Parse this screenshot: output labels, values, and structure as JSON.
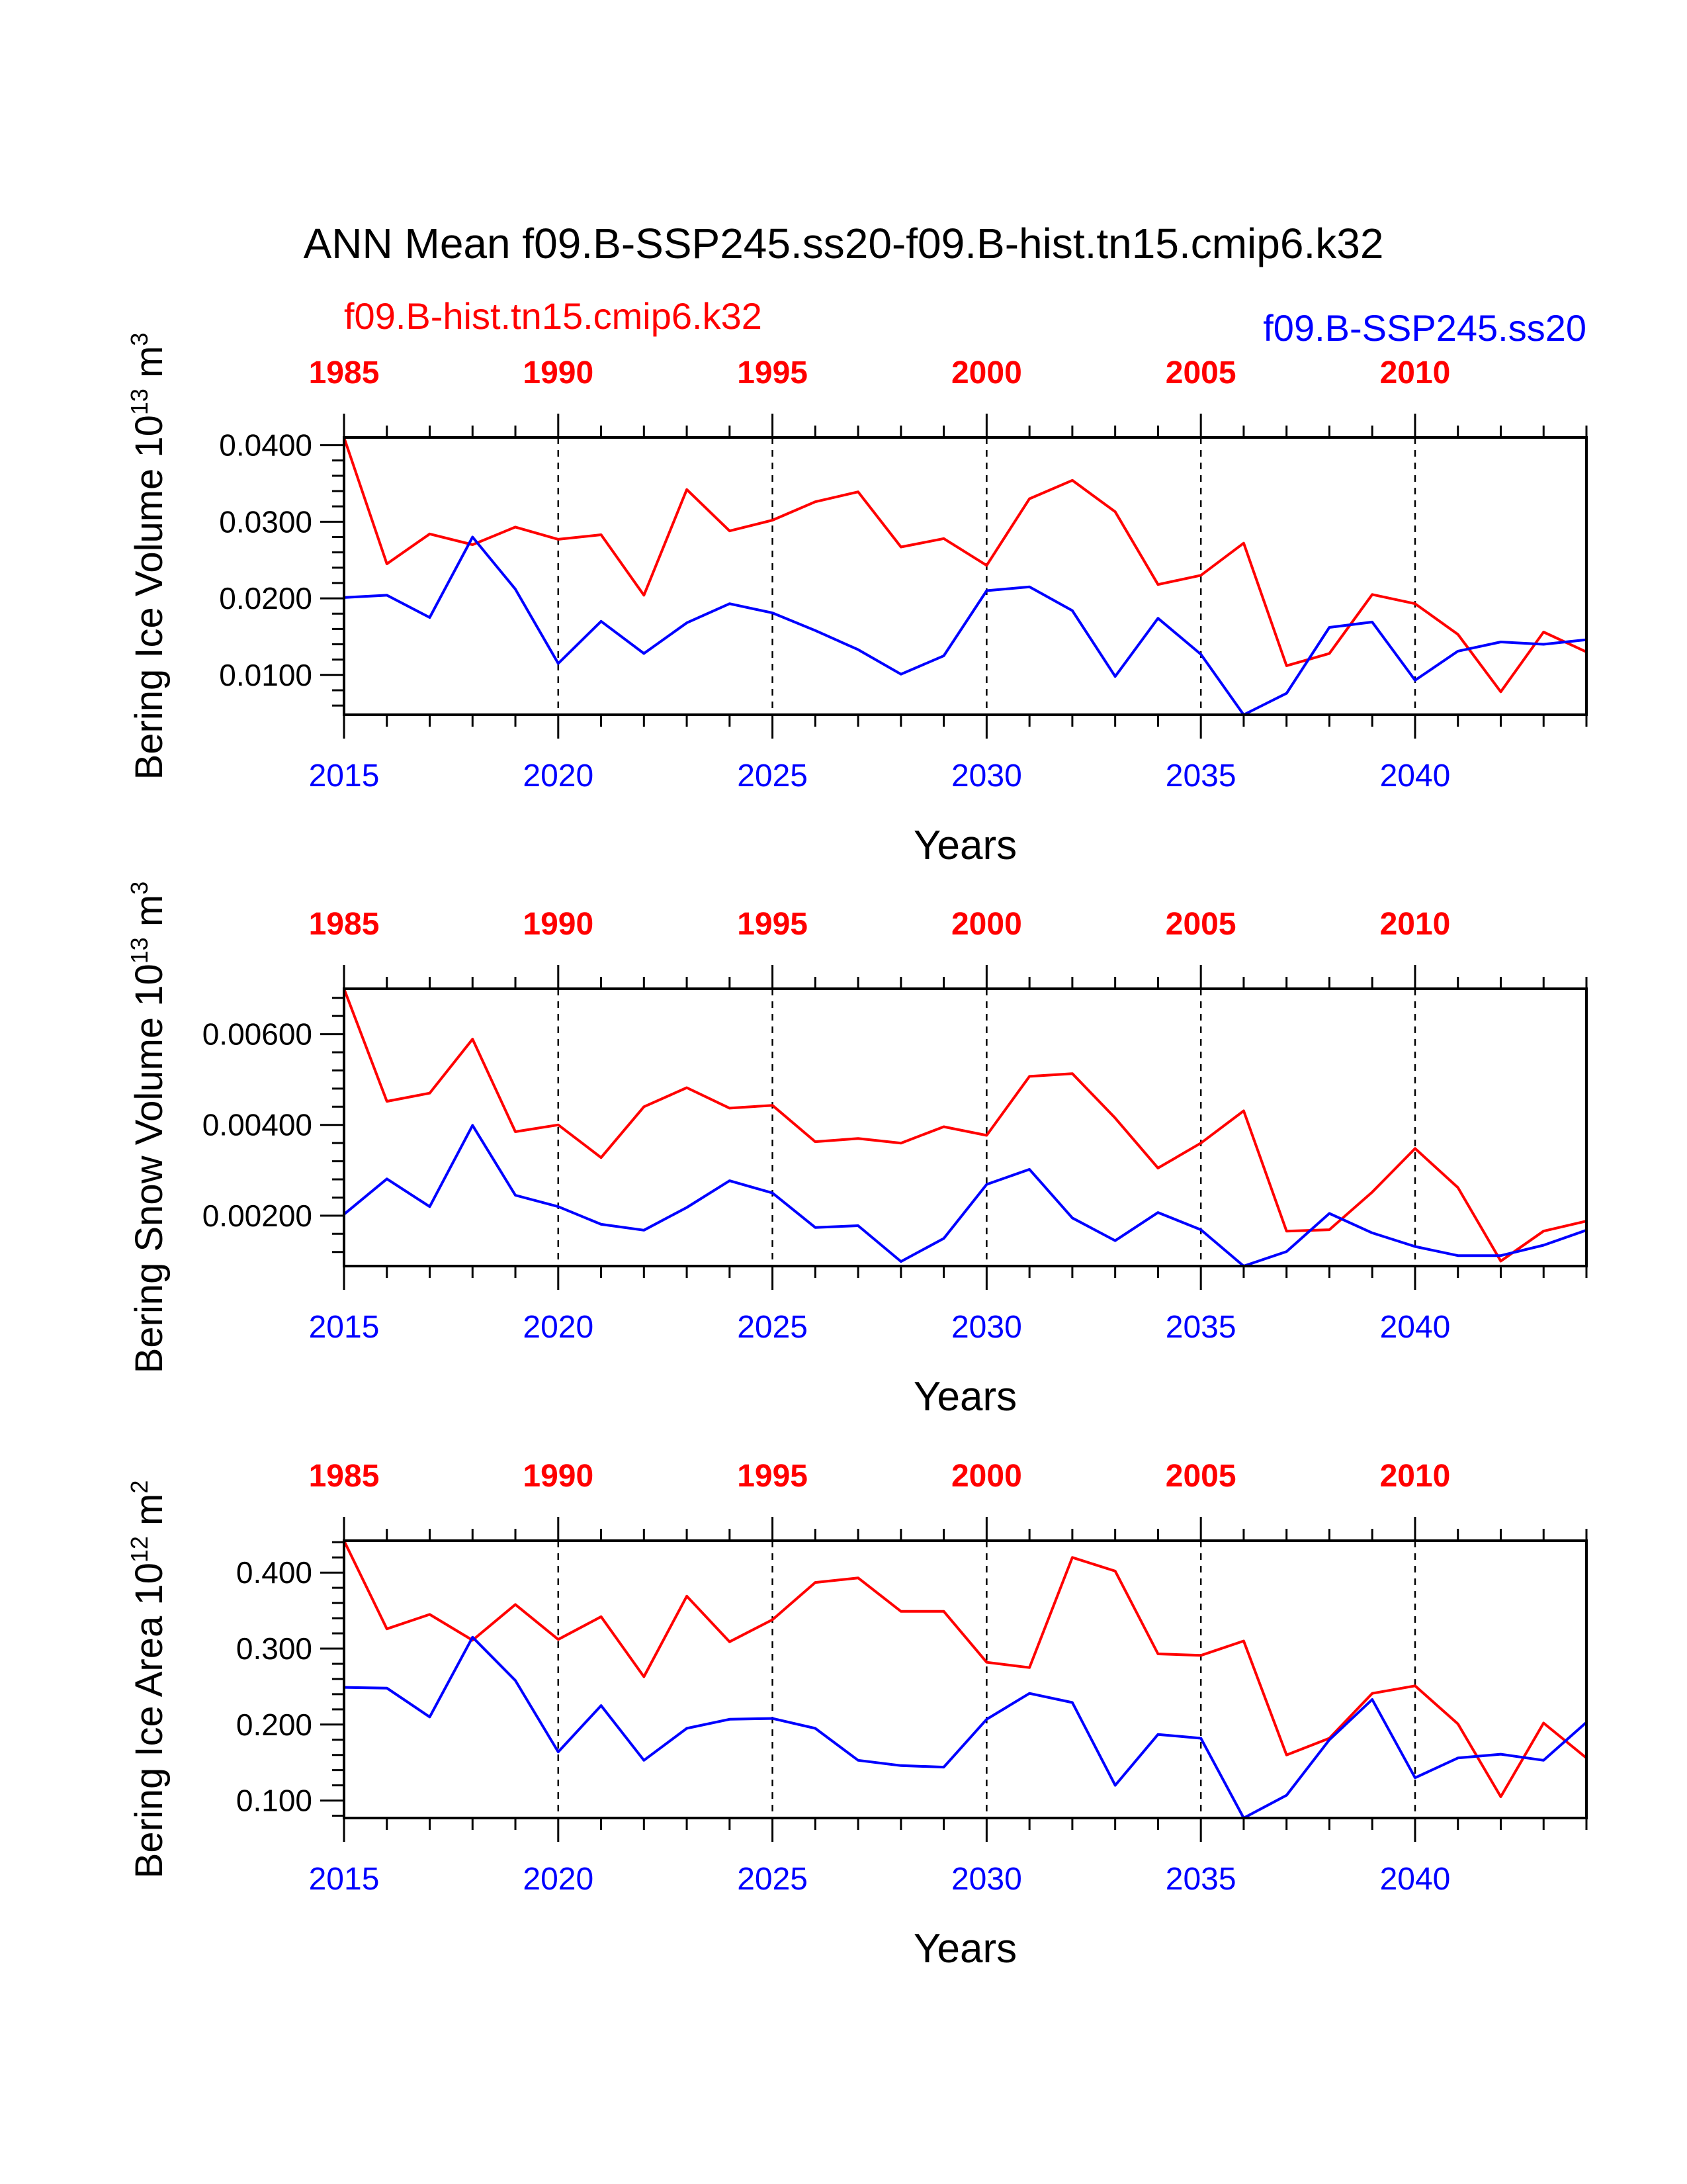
{
  "title": "ANN Mean f09.B-SSP245.ss20-f09.B-hist.tn15.cmip6.k32",
  "legend": {
    "red_label": "f09.B-hist.tn15.cmip6.k32",
    "blue_label": "f09.B-SSP245.ss20"
  },
  "colors": {
    "red": "#ff0000",
    "blue": "#0000ff",
    "axis": "#000000"
  },
  "chart_data": [
    {
      "type": "line",
      "ylabel": "Bering Ice Volume 10",
      "ylabel_exp": "13",
      "ylabel_unit": "m",
      "ylabel_unit_exp": "3",
      "xlabel": "Years",
      "xlim": [
        2015,
        2044
      ],
      "ylim": [
        0.0048,
        0.041
      ],
      "yticks": [
        0.01,
        0.02,
        0.03,
        0.04
      ],
      "yticklabels": [
        "0.0100",
        "0.0200",
        "0.0300",
        "0.0400"
      ],
      "yminor_step": 0.002,
      "grid": "dashed vertical at major x ticks",
      "bottom_axis": {
        "ticks": [
          2015,
          2020,
          2025,
          2030,
          2035,
          2040
        ],
        "labels": [
          "2015",
          "2020",
          "2025",
          "2030",
          "2035",
          "2040"
        ]
      },
      "top_axis": {
        "ticks": [
          1985,
          1990,
          1995,
          2000,
          2005,
          2010
        ],
        "labels": [
          "1985",
          "1990",
          "1995",
          "2000",
          "2005",
          "2010"
        ]
      },
      "x": [
        2015,
        2016,
        2017,
        2018,
        2019,
        2020,
        2021,
        2022,
        2023,
        2024,
        2025,
        2026,
        2027,
        2028,
        2029,
        2030,
        2031,
        2032,
        2033,
        2034,
        2035,
        2036,
        2037,
        2038,
        2039,
        2040,
        2041,
        2042,
        2043,
        2044
      ],
      "series": [
        {
          "name": "f09.B-hist.tn15.cmip6.k32",
          "color": "#ff0000",
          "values": [
            0.041,
            0.0245,
            0.0284,
            0.027,
            0.0293,
            0.0277,
            0.0283,
            0.0204,
            0.0342,
            0.0288,
            0.0302,
            0.0326,
            0.0339,
            0.0267,
            0.0278,
            0.0243,
            0.033,
            0.0354,
            0.0313,
            0.0218,
            0.023,
            0.0272,
            0.0112,
            0.0128,
            0.0205,
            0.0193,
            0.0153,
            0.0078,
            0.0156,
            0.013
          ]
        },
        {
          "name": "f09.B-SSP245.ss20",
          "color": "#0000ff",
          "values": [
            0.0201,
            0.0204,
            0.0175,
            0.028,
            0.0212,
            0.0115,
            0.017,
            0.0128,
            0.0168,
            0.0193,
            0.0181,
            0.0158,
            0.0133,
            0.0101,
            0.0125,
            0.021,
            0.0215,
            0.0184,
            0.0098,
            0.0174,
            0.0127,
            0.0048,
            0.0076,
            0.0162,
            0.0169,
            0.0093,
            0.0131,
            0.0143,
            0.014,
            0.0146
          ]
        }
      ]
    },
    {
      "type": "line",
      "ylabel": "Bering Snow Volume 10",
      "ylabel_exp": "13",
      "ylabel_unit": "m",
      "ylabel_unit_exp": "3",
      "xlabel": "Years",
      "xlim": [
        2015,
        2044
      ],
      "ylim": [
        0.00089,
        0.007
      ],
      "yticks": [
        0.002,
        0.004,
        0.006
      ],
      "yticklabels": [
        "0.00200",
        "0.00400",
        "0.00600"
      ],
      "yminor_step": 0.0004,
      "grid": "dashed vertical at major x ticks",
      "bottom_axis": {
        "ticks": [
          2015,
          2020,
          2025,
          2030,
          2035,
          2040
        ],
        "labels": [
          "2015",
          "2020",
          "2025",
          "2030",
          "2035",
          "2040"
        ]
      },
      "top_axis": {
        "ticks": [
          1985,
          1990,
          1995,
          2000,
          2005,
          2010
        ],
        "labels": [
          "1985",
          "1990",
          "1995",
          "2000",
          "2005",
          "2010"
        ]
      },
      "x": [
        2015,
        2016,
        2017,
        2018,
        2019,
        2020,
        2021,
        2022,
        2023,
        2024,
        2025,
        2026,
        2027,
        2028,
        2029,
        2030,
        2031,
        2032,
        2033,
        2034,
        2035,
        2036,
        2037,
        2038,
        2039,
        2040,
        2041,
        2042,
        2043,
        2044
      ],
      "series": [
        {
          "name": "f09.B-hist.tn15.cmip6.k32",
          "color": "#ff0000",
          "values": [
            0.007,
            0.00452,
            0.0047,
            0.00589,
            0.00385,
            0.004,
            0.00328,
            0.0044,
            0.00482,
            0.00437,
            0.00443,
            0.00363,
            0.0037,
            0.0036,
            0.00396,
            0.00377,
            0.00507,
            0.00513,
            0.00415,
            0.00305,
            0.0036,
            0.00431,
            0.00166,
            0.00169,
            0.00252,
            0.00348,
            0.00262,
            0.001,
            0.00166,
            0.00188
          ]
        },
        {
          "name": "f09.B-SSP245.ss20",
          "color": "#0000ff",
          "values": [
            0.00203,
            0.00281,
            0.0022,
            0.00399,
            0.00245,
            0.0022,
            0.00181,
            0.00168,
            0.00218,
            0.00277,
            0.0025,
            0.00174,
            0.00178,
            0.00099,
            0.0015,
            0.00269,
            0.00302,
            0.00195,
            0.00145,
            0.00207,
            0.00169,
            0.00089,
            0.00121,
            0.00205,
            0.00162,
            0.00132,
            0.00112,
            0.00112,
            0.00135,
            0.00168
          ]
        }
      ]
    },
    {
      "type": "line",
      "ylabel": "Bering Ice Area 10",
      "ylabel_exp": "12",
      "ylabel_unit": "m",
      "ylabel_unit_exp": "2",
      "xlabel": "Years",
      "xlim": [
        2015,
        2044
      ],
      "ylim": [
        0.077,
        0.442
      ],
      "yticks": [
        0.1,
        0.2,
        0.3,
        0.4
      ],
      "yticklabels": [
        "0.100",
        "0.200",
        "0.300",
        "0.400"
      ],
      "yminor_step": 0.02,
      "grid": "dashed vertical at major x ticks",
      "bottom_axis": {
        "ticks": [
          2015,
          2020,
          2025,
          2030,
          2035,
          2040
        ],
        "labels": [
          "2015",
          "2020",
          "2025",
          "2030",
          "2035",
          "2040"
        ]
      },
      "top_axis": {
        "ticks": [
          1985,
          1990,
          1995,
          2000,
          2005,
          2010
        ],
        "labels": [
          "1985",
          "1990",
          "1995",
          "2000",
          "2005",
          "2010"
        ]
      },
      "x": [
        2015,
        2016,
        2017,
        2018,
        2019,
        2020,
        2021,
        2022,
        2023,
        2024,
        2025,
        2026,
        2027,
        2028,
        2029,
        2030,
        2031,
        2032,
        2033,
        2034,
        2035,
        2036,
        2037,
        2038,
        2039,
        2040,
        2041,
        2042,
        2043,
        2044
      ],
      "series": [
        {
          "name": "f09.B-hist.tn15.cmip6.k32",
          "color": "#ff0000",
          "values": [
            0.442,
            0.326,
            0.345,
            0.311,
            0.358,
            0.312,
            0.342,
            0.263,
            0.369,
            0.309,
            0.338,
            0.387,
            0.393,
            0.349,
            0.349,
            0.282,
            0.275,
            0.42,
            0.402,
            0.293,
            0.291,
            0.31,
            0.16,
            0.182,
            0.241,
            0.251,
            0.201,
            0.105,
            0.202,
            0.156
          ]
        },
        {
          "name": "f09.B-SSP245.ss20",
          "color": "#0000ff",
          "values": [
            0.249,
            0.248,
            0.21,
            0.315,
            0.258,
            0.164,
            0.225,
            0.153,
            0.195,
            0.207,
            0.208,
            0.195,
            0.153,
            0.146,
            0.144,
            0.207,
            0.241,
            0.229,
            0.12,
            0.187,
            0.182,
            0.077,
            0.107,
            0.18,
            0.233,
            0.13,
            0.156,
            0.161,
            0.153,
            0.203
          ]
        }
      ]
    }
  ]
}
